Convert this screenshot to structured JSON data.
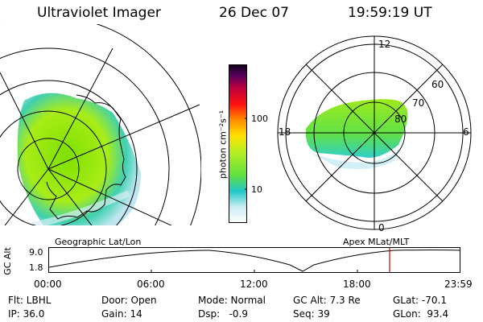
{
  "header": {
    "title": "Ultraviolet Imager",
    "date": "26 Dec 07",
    "time": "19:59:19 UT"
  },
  "left_panel": {
    "caption": "Geographic Lat/Lon"
  },
  "right_panel": {
    "caption": "Apex MLat/MLT",
    "mlt_labels": {
      "top": "12",
      "bottom": "0",
      "left": "18",
      "right": "6"
    },
    "lat_labels": [
      "60",
      "70",
      "80"
    ]
  },
  "colorbar": {
    "unit_label": "photon cm⁻²s⁻¹",
    "tick_100": "100",
    "tick_10": "10"
  },
  "timeline": {
    "ylabel": "GC Alt",
    "ytick_top": "9.0",
    "ytick_bottom": "1.8",
    "xticks": [
      "00:00",
      "06:00",
      "12:00",
      "18:00",
      "23:59"
    ]
  },
  "info": {
    "row1": {
      "filter": "Flt: LBHL",
      "door": "Door: Open",
      "mode": "Mode: Normal",
      "gc_alt": "GC Alt: 7.3 Re",
      "glat": "GLat: -70.1"
    },
    "row2": {
      "ip": "IP: 36.0",
      "gain": "Gain: 14",
      "dsp": "Dsp:   -0.9",
      "seq": "Seq: 39",
      "glon": "GLon:  93.4"
    }
  },
  "colors": {
    "marker": "#cc0000"
  }
}
